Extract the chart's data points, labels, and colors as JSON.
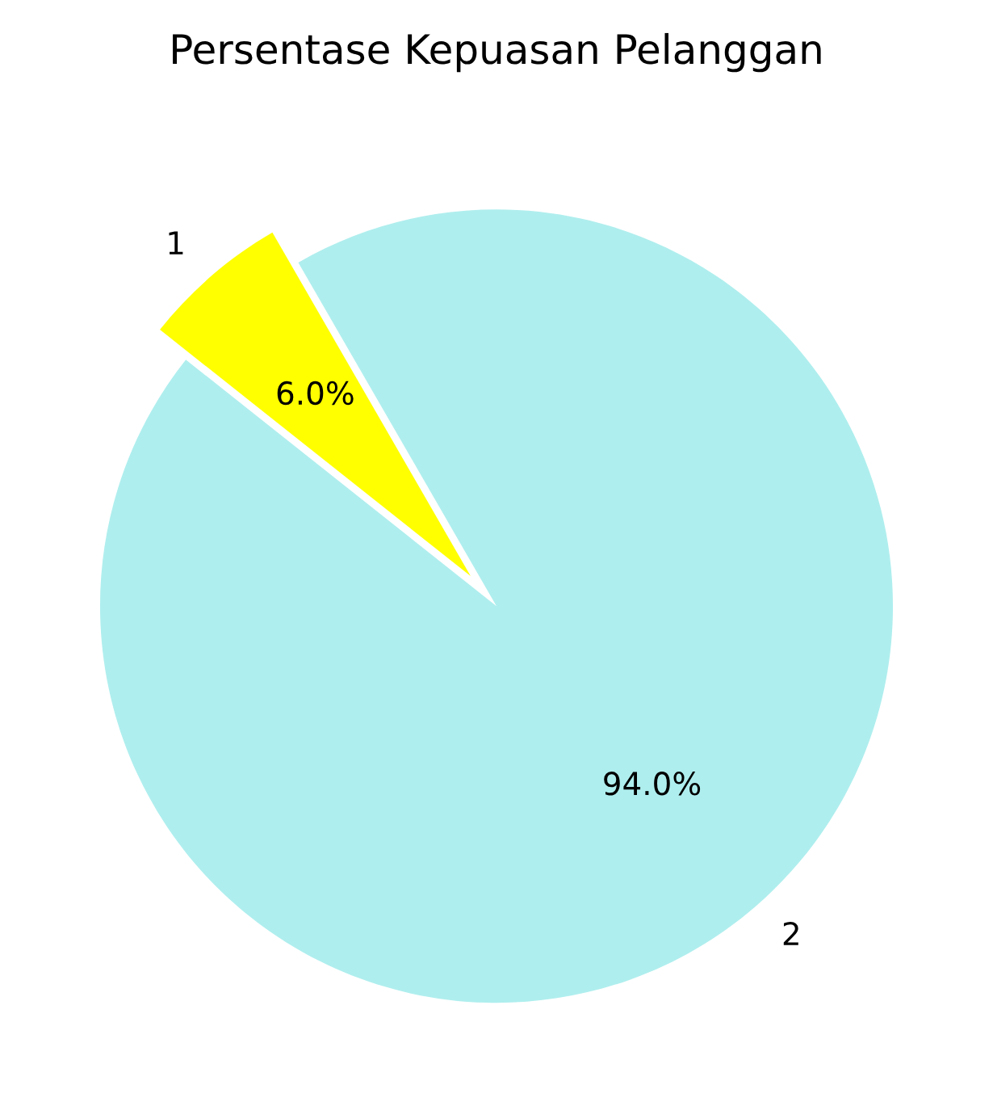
{
  "chart_data": {
    "type": "pie",
    "title": "Persentase Kepuasan Pelanggan",
    "categories": [
      "1",
      "2"
    ],
    "values": [
      6,
      94
    ],
    "colors": [
      "#ffff00",
      "#afeeee"
    ],
    "value_labels": [
      "6.0%",
      "94.0%"
    ]
  }
}
